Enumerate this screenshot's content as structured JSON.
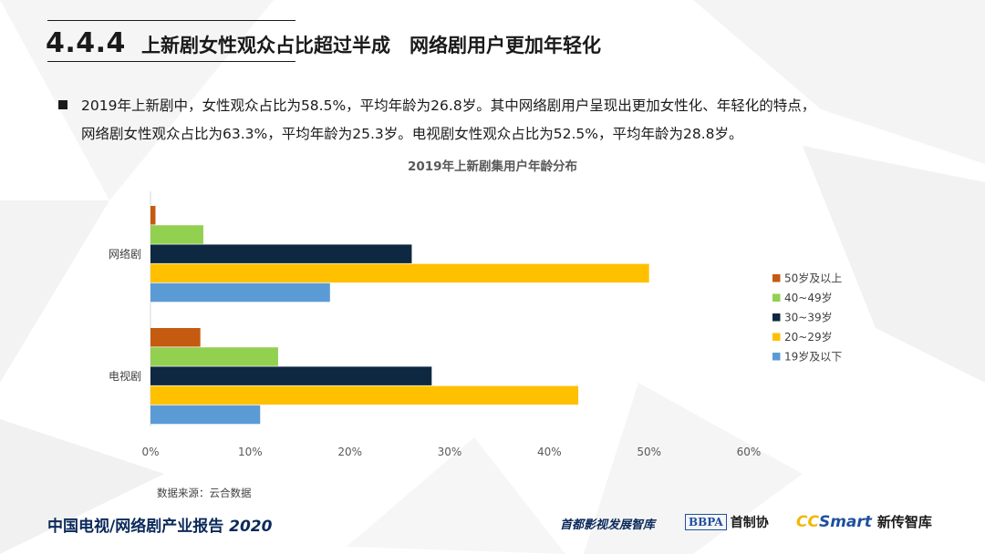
{
  "header": {
    "section_number": "4.4.4",
    "section_title": "上新剧女性观众占比超过半成　网络剧用户更加年轻化"
  },
  "body_text": {
    "line1": "2019年上新剧中，女性观众占比为58.5%，平均年龄为26.8岁。其中网络剧用户呈现出更加女性化、年轻化的特点，",
    "line2": "网络剧女性观众占比为63.3%，平均年龄为25.3岁。电视剧女性观众占比为52.5%，平均年龄为28.8岁。"
  },
  "source_note": "数据来源：云合数据",
  "footer": {
    "report_title": "中国电视/网络剧产业报告",
    "report_year": "2020",
    "logo1_text": "首都影视发展智库",
    "logo2_mark": "BBPA",
    "logo2_text": "首制协",
    "logo3_cc": "CC",
    "logo3_smart": "Smart",
    "logo3_text": "新传智库"
  },
  "colors": {
    "s50": "#c55a11",
    "s40": "#92d050",
    "s30": "#0e2841",
    "s20": "#ffc000",
    "s19": "#5b9bd5"
  },
  "chart_data": {
    "type": "bar",
    "orientation": "horizontal",
    "title": "2019年上新剧集用户年龄分布",
    "categories": [
      "网络剧",
      "电视剧"
    ],
    "series": [
      {
        "name": "50岁及以上",
        "values": [
          0.5,
          5.0
        ],
        "color": "#c55a11"
      },
      {
        "name": "40~49岁",
        "values": [
          5.3,
          12.8
        ],
        "color": "#92d050"
      },
      {
        "name": "30~39岁",
        "values": [
          26.2,
          28.2
        ],
        "color": "#0e2841"
      },
      {
        "name": "20~29岁",
        "values": [
          50.0,
          42.9
        ],
        "color": "#ffc000"
      },
      {
        "name": "19岁及以下",
        "values": [
          18.0,
          11.0
        ],
        "color": "#5b9bd5"
      }
    ],
    "xlim": [
      0,
      60
    ],
    "xticks": [
      "0%",
      "10%",
      "20%",
      "30%",
      "40%",
      "50%",
      "60%"
    ],
    "grid": false,
    "legend_position": "right"
  }
}
